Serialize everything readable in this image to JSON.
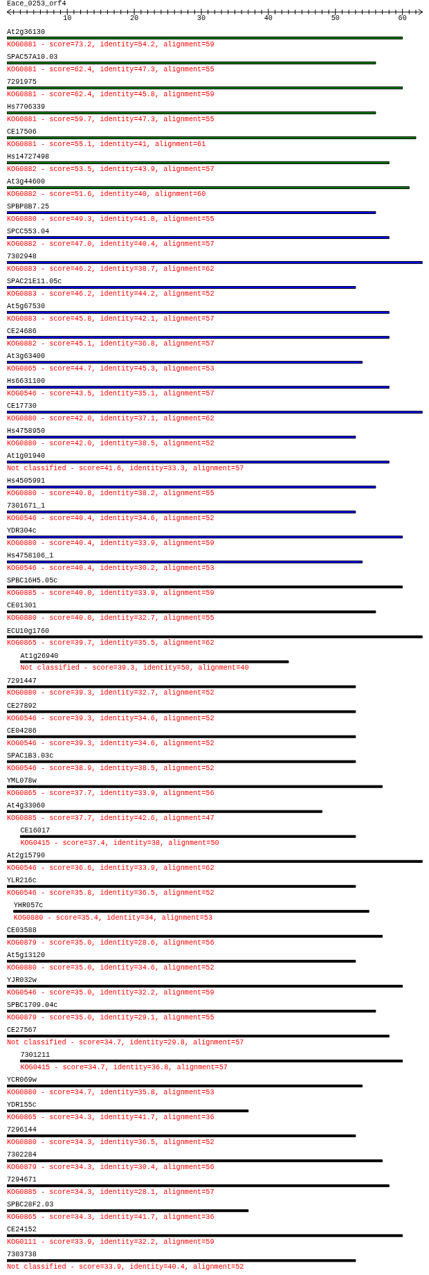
{
  "chart_data": {
    "type": "bar",
    "orientation": "horizontal",
    "title": "Eace_0253_orf4",
    "categories": [
      "At2g36130",
      "SPAC57A10.03",
      "7291975",
      "Hs7706339",
      "CE17506",
      "Hs14727498",
      "At3g44600",
      "SPBP8B7.25",
      "SPCC553.04",
      "7302948",
      "SPAC21E11.05c",
      "At5g67530",
      "CE24686",
      "At3g63400",
      "Hs6631100",
      "CE17730",
      "Hs4758950",
      "At1g01940",
      "Hs4505991",
      "7301671_1",
      "YDR304c",
      "Hs4758106_1",
      "SPBC16H5.05c",
      "CE01301",
      "ECU10g1760",
      "At1g26940",
      "7291447",
      "CE27892",
      "CE04286",
      "SPAC1B3.03c",
      "YML078w",
      "At4g33060",
      "CE16017",
      "At2g15790",
      "YLR216c",
      "YHR057c",
      "CE03588",
      "At5g13120",
      "YJR032w",
      "SPBC1709.04c",
      "CE27567",
      "7301211",
      "YCR069w",
      "YDR155c",
      "7296144",
      "7302284",
      "7294671",
      "SPBC28F2.03",
      "CE24152",
      "7303738"
    ],
    "base": [
      1,
      1,
      1,
      1,
      1,
      1,
      1,
      1,
      1,
      1,
      1,
      1,
      1,
      1,
      1,
      1,
      1,
      1,
      1,
      1,
      1,
      1,
      1,
      1,
      1,
      3,
      1,
      1,
      1,
      1,
      1,
      1,
      3,
      1,
      1,
      2,
      1,
      1,
      1,
      1,
      1,
      3,
      1,
      1,
      1,
      1,
      1,
      1,
      1,
      1
    ],
    "values": [
      59,
      55,
      59,
      55,
      61,
      57,
      60,
      55,
      57,
      62,
      52,
      57,
      57,
      53,
      57,
      62,
      52,
      57,
      55,
      52,
      59,
      53,
      59,
      55,
      62,
      40,
      52,
      52,
      52,
      52,
      56,
      47,
      50,
      62,
      52,
      53,
      56,
      52,
      59,
      55,
      57,
      57,
      53,
      36,
      52,
      56,
      57,
      36,
      59,
      52
    ],
    "colors": [
      "#008000",
      "#008000",
      "#008000",
      "#008000",
      "#008000",
      "#008000",
      "#008000",
      "#0000ff",
      "#0000ff",
      "#0000ff",
      "#0000ff",
      "#0000ff",
      "#0000ff",
      "#0000ff",
      "#0000ff",
      "#0000ff",
      "#0000ff",
      "#0000ff",
      "#0000ff",
      "#0000ff",
      "#0000ff",
      "#0000ff",
      "#000000",
      "#000000",
      "#000000",
      "#000000",
      "#000000",
      "#000000",
      "#000000",
      "#000000",
      "#000000",
      "#000000",
      "#000000",
      "#000000",
      "#000000",
      "#000000",
      "#000000",
      "#000000",
      "#000000",
      "#000000",
      "#000000",
      "#000000",
      "#000000",
      "#000000",
      "#000000",
      "#000000",
      "#000000",
      "#000000",
      "#000000",
      "#000000"
    ],
    "value_labels": [
      "KOG0881 - score=73.2, identity=54.2, alignment=59",
      "KOG0881 - score=62.4, identity=47.3, alignment=55",
      "KOG0881 - score=62.4, identity=45.8, alignment=59",
      "KOG0881 - score=59.7, identity=47.3, alignment=55",
      "KOG0881 - score=55.1, identity=41, alignment=61",
      "KOG0882 - score=53.5, identity=43.9, alignment=57",
      "KOG0882 - score=51.6, identity=40, alignment=60",
      "KOG0880 - score=49.3, identity=41.8, alignment=55",
      "KOG0882 - score=47.0, identity=40.4, alignment=57",
      "KOG0883 - score=46.2, identity=38.7, alignment=62",
      "KOG0883 - score=46.2, identity=44.2, alignment=52",
      "KOG0883 - score=45.8, identity=42.1, alignment=57",
      "KOG0882 - score=45.1, identity=36.8, alignment=57",
      "KOG0865 - score=44.7, identity=45.3, alignment=53",
      "KOG0546 - score=43.5, identity=35.1, alignment=57",
      "KOG0880 - score=42.0, identity=37.1, alignment=62",
      "KOG0880 - score=42.0, identity=38.5, alignment=52",
      "Not classified - score=41.6, identity=33.3, alignment=57",
      "KOG0880 - score=40.8, identity=38.2, alignment=55",
      "KOG0546 - score=40.4, identity=34.6, alignment=52",
      "KOG0880 - score=40.4, identity=33.9, alignment=59",
      "KOG0546 - score=40.4, identity=30.2, alignment=53",
      "KOG0885 - score=40.0, identity=33.9, alignment=59",
      "KOG0880 - score=40.0, identity=32.7, alignment=55",
      "KOG0865 - score=39.7, identity=35.5, alignment=62",
      "Not classified - score=39.3, identity=50, alignment=40",
      "KOG0880 - score=39.3, identity=32.7, alignment=52",
      "KOG0546 - score=39.3, identity=34.6, alignment=52",
      "KOG0546 - score=39.3, identity=34.6, alignment=52",
      "KOG0546 - score=38.9, identity=38.5, alignment=52",
      "KOG0865 - score=37.7, identity=33.9, alignment=56",
      "KOG0885 - score=37.7, identity=42.6, alignment=47",
      "KOG0415 - score=37.4, identity=38, alignment=50",
      "KOG0546 - score=36.6, identity=33.9, alignment=62",
      "KOG0546 - score=35.8, identity=36.5, alignment=52",
      "KOG0880 - score=35.4, identity=34, alignment=53",
      "KOG0879 - score=35.0, identity=28.6, alignment=56",
      "KOG0880 - score=35.0, identity=34.6, alignment=52",
      "KOG0546 - score=35.0, identity=32.2, alignment=59",
      "KOG0879 - score=35.0, identity=29.1, alignment=55",
      "Not classified - score=34.7, identity=29.8, alignment=57",
      "KOG0415 - score=34.7, identity=36.8, alignment=57",
      "KOG0880 - score=34.7, identity=35.8, alignment=53",
      "KOG0865 - score=34.3, identity=41.7, alignment=36",
      "KOG0880 - score=34.3, identity=36.5, alignment=52",
      "KOG0879 - score=34.3, identity=30.4, alignment=56",
      "KOG0885 - score=34.3, identity=28.1, alignment=57",
      "KOG0865 - score=34.3, identity=41.7, alignment=36",
      "KOG0111 - score=33.9, identity=32.2, alignment=59",
      "Not classified - score=33.9, identity=40.4, alignment=52"
    ],
    "xlim": [
      1,
      63
    ],
    "xticks": [
      {
        "value": 2,
        "label": null
      },
      {
        "value": 3,
        "label": null
      },
      {
        "value": 4,
        "label": null
      },
      {
        "value": 5,
        "label": null
      },
      {
        "value": 6,
        "label": null
      },
      {
        "value": 7,
        "label": null
      },
      {
        "value": 8,
        "label": null
      },
      {
        "value": 9,
        "label": null
      },
      10,
      {
        "value": 11,
        "label": null
      },
      {
        "value": 12,
        "label": null
      },
      {
        "value": 13,
        "label": null
      },
      {
        "value": 14,
        "label": null
      },
      {
        "value": 15,
        "label": null
      },
      {
        "value": 16,
        "label": null
      },
      {
        "value": 17,
        "label": null
      },
      {
        "value": 18,
        "label": null
      },
      {
        "value": 19,
        "label": null
      },
      20,
      {
        "value": 21,
        "label": null
      },
      {
        "value": 22,
        "label": null
      },
      {
        "value": 23,
        "label": null
      },
      {
        "value": 24,
        "label": null
      },
      {
        "value": 25,
        "label": null
      },
      {
        "value": 26,
        "label": null
      },
      {
        "value": 27,
        "label": null
      },
      {
        "value": 28,
        "label": null
      },
      {
        "value": 29,
        "label": null
      },
      30,
      {
        "value": 31,
        "label": null
      },
      {
        "value": 32,
        "label": null
      },
      {
        "value": 33,
        "label": null
      },
      {
        "value": 34,
        "label": null
      },
      {
        "value": 35,
        "label": null
      },
      {
        "value": 36,
        "label": null
      },
      {
        "value": 37,
        "label": null
      },
      {
        "value": 38,
        "label": null
      },
      {
        "value": 39,
        "label": null
      },
      40,
      {
        "value": 41,
        "label": null
      },
      {
        "value": 42,
        "label": null
      },
      {
        "value": 43,
        "label": null
      },
      {
        "value": 44,
        "label": null
      },
      {
        "value": 45,
        "label": null
      },
      {
        "value": 46,
        "label": null
      },
      {
        "value": 47,
        "label": null
      },
      {
        "value": 48,
        "label": null
      },
      {
        "value": 49,
        "label": null
      },
      50,
      {
        "value": 51,
        "label": null
      },
      {
        "value": 52,
        "label": null
      },
      {
        "value": 53,
        "label": null
      },
      {
        "value": 54,
        "label": null
      },
      {
        "value": 55,
        "label": null
      },
      {
        "value": 56,
        "label": null
      },
      {
        "value": 57,
        "label": null
      },
      {
        "value": 58,
        "label": null
      },
      {
        "value": 59,
        "label": null
      },
      60,
      {
        "value": 61,
        "label": null
      },
      {
        "value": 62,
        "label": null
      }
    ]
  }
}
